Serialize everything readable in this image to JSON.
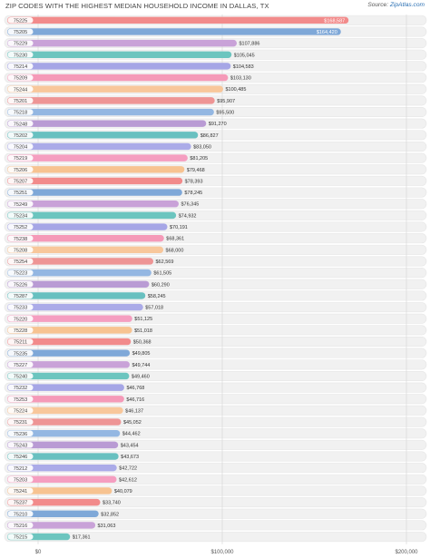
{
  "title": "ZIP CODES WITH THE HIGHEST MEDIAN HOUSEHOLD INCOME IN DALLAS, TX",
  "source_prefix": "Source: ",
  "source_link": "ZipAtlas.com",
  "chart_data": {
    "type": "bar",
    "orientation": "horizontal",
    "xlim": [
      0,
      200000
    ],
    "xticks": [
      "$0",
      "$100,000",
      "$200,000"
    ],
    "categories": [
      "75225",
      "75205",
      "75229",
      "75230",
      "75214",
      "75209",
      "75244",
      "75201",
      "75218",
      "75248",
      "75202",
      "75204",
      "75219",
      "75206",
      "75207",
      "75251",
      "75249",
      "75234",
      "75252",
      "75238",
      "75208",
      "75254",
      "75223",
      "75226",
      "75287",
      "75233",
      "75220",
      "75228",
      "75211",
      "75235",
      "75227",
      "75240",
      "75232",
      "75253",
      "75224",
      "75231",
      "75236",
      "75243",
      "75246",
      "75212",
      "75203",
      "75241",
      "75237",
      "75210",
      "75216",
      "75215"
    ],
    "values": [
      168587,
      164420,
      107886,
      105045,
      104583,
      103130,
      100485,
      95907,
      95500,
      91270,
      86827,
      83050,
      81205,
      79468,
      78393,
      78245,
      76345,
      74932,
      70191,
      68361,
      68000,
      62569,
      61505,
      60290,
      58245,
      57018,
      51125,
      51018,
      50368,
      49805,
      49744,
      49460,
      46768,
      46716,
      46137,
      45052,
      44462,
      43454,
      43673,
      42722,
      42612,
      40079,
      33740,
      32852,
      31063,
      17361
    ],
    "labels": [
      "$168,587",
      "$164,420",
      "$107,886",
      "$105,045",
      "$104,583",
      "$103,130",
      "$100,485",
      "$95,907",
      "$95,500",
      "$91,270",
      "$86,827",
      "$83,050",
      "$81,205",
      "$79,468",
      "$78,393",
      "$78,245",
      "$76,345",
      "$74,932",
      "$70,191",
      "$68,361",
      "$68,000",
      "$62,569",
      "$61,505",
      "$60,290",
      "$58,245",
      "$57,018",
      "$51,125",
      "$51,018",
      "$50,368",
      "$49,805",
      "$49,744",
      "$49,460",
      "$46,768",
      "$46,716",
      "$46,137",
      "$45,052",
      "$44,462",
      "$43,454",
      "$43,673",
      "$42,722",
      "$42,612",
      "$40,079",
      "$33,740",
      "$32,852",
      "$31,063",
      "$17,361"
    ],
    "palette": [
      "#f28b8b",
      "#7fa8d8",
      "#c9a2d8",
      "#6cc5bf",
      "#a6a6e6",
      "#f59ab8",
      "#f8c79b",
      "#ee9595",
      "#94b7e2",
      "#b99bd4",
      "#68c0c0",
      "#ababe8",
      "#f59ec0",
      "#f7c391"
    ],
    "grid": true,
    "legend": "none"
  }
}
